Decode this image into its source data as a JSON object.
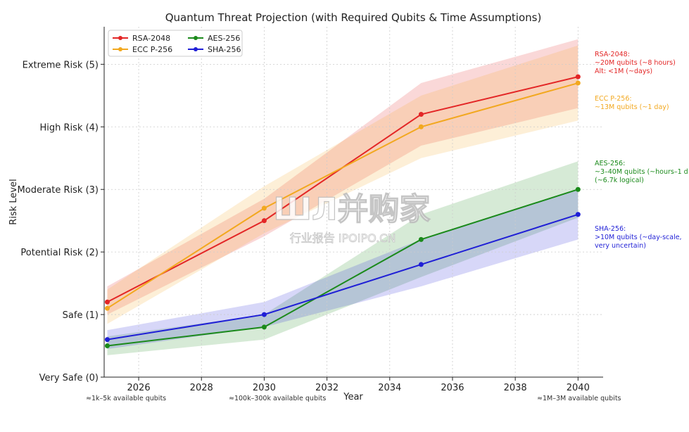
{
  "chart_data": {
    "type": "line",
    "title": "Quantum Threat Projection (with Required Qubits & Time Assumptions)",
    "xlabel": "Year",
    "ylabel": "Risk Level",
    "xlim": [
      2024.9,
      2040.8
    ],
    "ylim": [
      0,
      5.6
    ],
    "x_ticks": [
      2026,
      2028,
      2030,
      2032,
      2034,
      2036,
      2038,
      2040
    ],
    "y_ticks": [
      {
        "value": 0,
        "label": "Very Safe (0)"
      },
      {
        "value": 1,
        "label": "Safe (1)"
      },
      {
        "value": 2,
        "label": "Potential Risk (2)"
      },
      {
        "value": 3,
        "label": "Moderate Risk (3)"
      },
      {
        "value": 4,
        "label": "High Risk (4)"
      },
      {
        "value": 5,
        "label": "Extreme Risk (5)"
      }
    ],
    "grid": true,
    "legend_position": "top-left",
    "x": [
      2025,
      2030,
      2035,
      2040
    ],
    "series": [
      {
        "name": "RSA-2048",
        "color": "#e32626",
        "values": [
          1.2,
          2.5,
          4.2,
          4.8
        ],
        "lower": [
          1.0,
          2.25,
          3.7,
          4.3
        ],
        "upper": [
          1.45,
          2.85,
          4.7,
          5.4
        ]
      },
      {
        "name": "ECC P-256",
        "color": "#f2a81f",
        "values": [
          1.1,
          2.7,
          4.0,
          4.7
        ],
        "lower": [
          0.85,
          2.3,
          3.5,
          4.1
        ],
        "upper": [
          1.4,
          3.05,
          4.5,
          5.3
        ]
      },
      {
        "name": "AES-256",
        "color": "#1b8a1b",
        "values": [
          0.5,
          0.8,
          2.2,
          3.0
        ],
        "lower": [
          0.35,
          0.6,
          1.6,
          2.55
        ],
        "upper": [
          0.65,
          1.0,
          2.6,
          3.45
        ]
      },
      {
        "name": "SHA-256",
        "color": "#1f1fd6",
        "values": [
          0.6,
          1.0,
          1.8,
          2.6
        ],
        "lower": [
          0.45,
          0.8,
          1.45,
          2.2
        ],
        "upper": [
          0.75,
          1.2,
          2.2,
          3.0
        ]
      }
    ],
    "annotations": [
      {
        "color": "#e32626",
        "lines": [
          "RSA-2048:",
          "~20M qubits (~8 hours)",
          "Alt: <1M (~days)"
        ]
      },
      {
        "color": "#f2a81f",
        "lines": [
          "ECC P-256:",
          "~13M qubits (~1 day)"
        ]
      },
      {
        "color": "#1b8a1b",
        "lines": [
          "AES-256:",
          "~3–40M qubits (~hours–1 d",
          "(~6.7k logical)"
        ]
      },
      {
        "color": "#1f1fd6",
        "lines": [
          "SHA-256:",
          ">10M qubits (~day-scale,",
          "very uncertain)"
        ]
      }
    ],
    "footnotes": [
      "≈1k–5k available qubits",
      "≈100k–300k available qubits",
      "≈1M–3M available qubits"
    ]
  },
  "watermark": {
    "line1": "ШЛ并购家",
    "line2": "行业报告 IPOIPO.CN"
  }
}
